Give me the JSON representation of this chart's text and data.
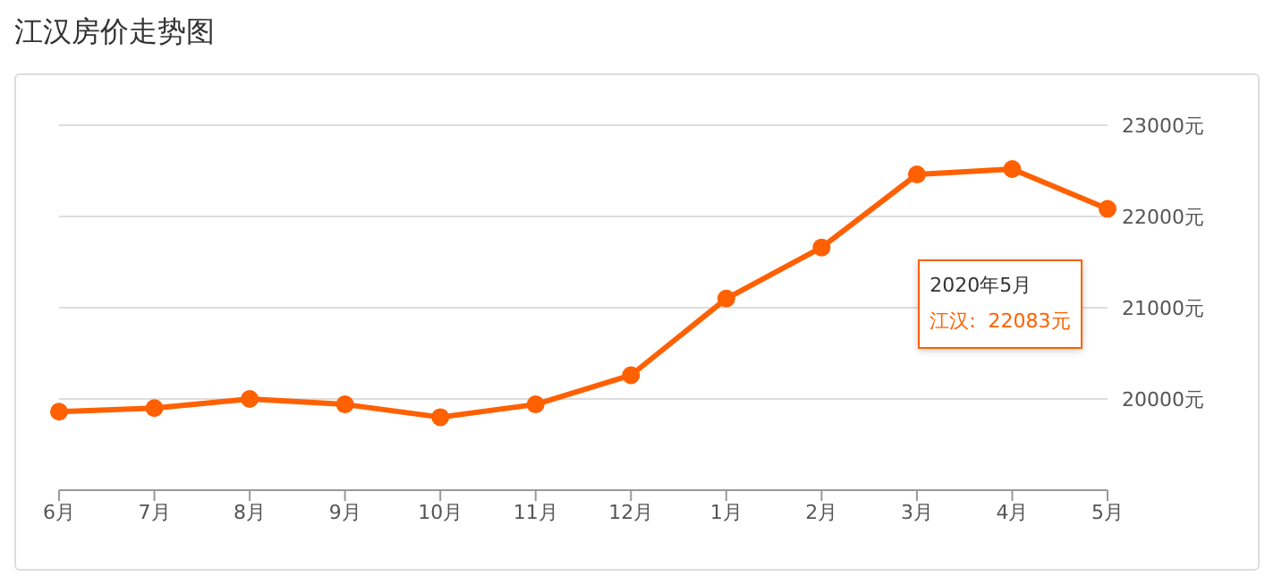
{
  "chart_data": {
    "type": "line",
    "title": "江汉房价走势图",
    "categories": [
      "6月",
      "7月",
      "8月",
      "9月",
      "10月",
      "11月",
      "12月",
      "1月",
      "2月",
      "3月",
      "4月",
      "5月"
    ],
    "series": [
      {
        "color": "#ff6000",
        "values": [
          19860,
          19900,
          20000,
          19940,
          19800,
          19940,
          20260,
          21100,
          21660,
          22460,
          22520,
          22083
        ]
      }
    ],
    "ylim": [
      19000,
      23000
    ],
    "yticks": [
      {
        "value": 19000,
        "label": null
      },
      {
        "value": 20000,
        "label": "20000元"
      },
      {
        "value": 21000,
        "label": "21000元"
      },
      {
        "value": 22000,
        "label": "22000元"
      },
      {
        "value": 23000,
        "label": "23000元"
      }
    ],
    "grid": "y",
    "marker": "circle",
    "line_style": "solid",
    "annotations": [
      "2020年5月",
      "江汉:  22083元"
    ]
  }
}
